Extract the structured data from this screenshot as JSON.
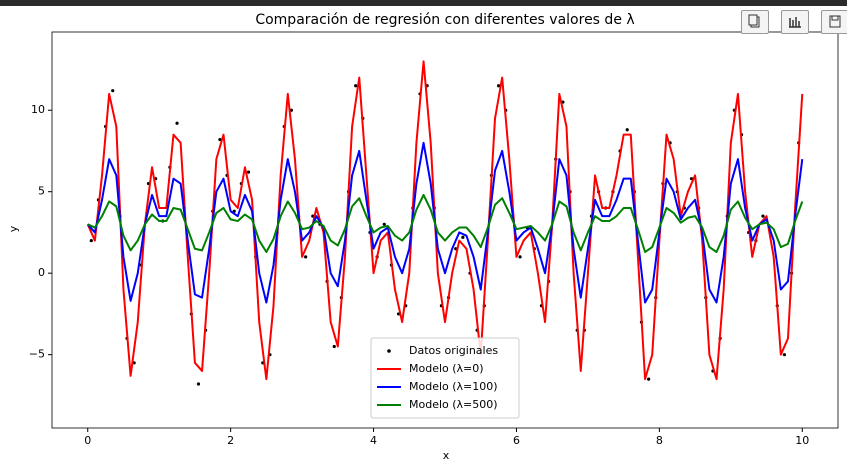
{
  "chart_data": {
    "type": "line",
    "title": "Comparación de regresión con diferentes valores de λ",
    "xlabel": "x",
    "ylabel": "y",
    "xlim": [
      -0.5,
      10.5
    ],
    "ylim": [
      -9.5,
      14.8
    ],
    "xticks": [
      0,
      2,
      4,
      6,
      8,
      10
    ],
    "yticks": [
      {
        "value": -5,
        "label": "−5"
      },
      0,
      5,
      10
    ],
    "grid": false,
    "legend": "lower center",
    "x": [
      0,
      0.1,
      0.2,
      0.3,
      0.4,
      0.5,
      0.6,
      0.7,
      0.8,
      0.9,
      1,
      1.1,
      1.2,
      1.3,
      1.4,
      1.5,
      1.6,
      1.7,
      1.8,
      1.9,
      2,
      2.1,
      2.2,
      2.3,
      2.4,
      2.5,
      2.6,
      2.7,
      2.8,
      2.9,
      3,
      3.1,
      3.2,
      3.3,
      3.4,
      3.5,
      3.6,
      3.7,
      3.8,
      3.9,
      4,
      4.1,
      4.2,
      4.3,
      4.4,
      4.5,
      4.6,
      4.7,
      4.8,
      4.9,
      5,
      5.1,
      5.2,
      5.3,
      5.4,
      5.5,
      5.6,
      5.7,
      5.8,
      5.9,
      6,
      6.1,
      6.2,
      6.3,
      6.4,
      6.5,
      6.6,
      6.7,
      6.8,
      6.9,
      7,
      7.1,
      7.2,
      7.3,
      7.4,
      7.5,
      7.6,
      7.7,
      7.8,
      7.9,
      8,
      8.1,
      8.2,
      8.3,
      8.4,
      8.5,
      8.6,
      8.7,
      8.8,
      8.9,
      9,
      9.1,
      9.2,
      9.3,
      9.4,
      9.5,
      9.6,
      9.7,
      9.8,
      9.9,
      10
    ],
    "series": [
      {
        "name": "Datos originales",
        "type": "scatter",
        "color": "#000000",
        "x": [
          0.05,
          0.15,
          0.25,
          0.35,
          0.45,
          0.55,
          0.65,
          0.75,
          0.85,
          0.95,
          1.05,
          1.15,
          1.25,
          1.35,
          1.45,
          1.55,
          1.65,
          1.75,
          1.85,
          1.95,
          2.05,
          2.15,
          2.25,
          2.35,
          2.45,
          2.55,
          2.65,
          2.75,
          2.85,
          2.95,
          3.05,
          3.15,
          3.25,
          3.35,
          3.45,
          3.55,
          3.65,
          3.75,
          3.85,
          3.95,
          4.05,
          4.15,
          4.25,
          4.35,
          4.45,
          4.55,
          4.65,
          4.75,
          4.85,
          4.95,
          5.05,
          5.15,
          5.25,
          5.35,
          5.45,
          5.55,
          5.65,
          5.75,
          5.85,
          5.95,
          6.05,
          6.15,
          6.25,
          6.35,
          6.45,
          6.55,
          6.65,
          6.75,
          6.85,
          6.95,
          7.05,
          7.15,
          7.25,
          7.35,
          7.45,
          7.55,
          7.65,
          7.75,
          7.85,
          7.95,
          8.05,
          8.15,
          8.25,
          8.35,
          8.45,
          8.55,
          8.65,
          8.75,
          8.85,
          8.95,
          9.05,
          9.15,
          9.25,
          9.35,
          9.45,
          9.55,
          9.65,
          9.75,
          9.85,
          9.95
        ],
        "values": [
          2.0,
          4.5,
          9.0,
          11.2,
          3.5,
          -4.0,
          -5.5,
          0.5,
          5.5,
          5.8,
          3.2,
          6.5,
          9.2,
          4.0,
          -2.5,
          -6.8,
          -3.5,
          3.8,
          8.2,
          6.0,
          3.8,
          5.5,
          6.2,
          1.0,
          -5.5,
          -5.0,
          2.5,
          9.0,
          10.0,
          3.5,
          1.0,
          3.5,
          3.0,
          -0.5,
          -4.5,
          -1.5,
          5.0,
          11.5,
          9.5,
          2.5,
          1.0,
          3.0,
          0.5,
          -2.5,
          -2.0,
          4.0,
          11.0,
          11.5,
          4.0,
          -2.0,
          -1.5,
          1.5,
          2.2,
          0.0,
          -3.5,
          -2.0,
          6.0,
          11.5,
          10.0,
          3.5,
          1.0,
          2.8,
          1.5,
          -2.0,
          -0.5,
          7.0,
          10.5,
          5.0,
          -3.5,
          -3.5,
          3.5,
          5.0,
          4.0,
          5.0,
          7.5,
          8.8,
          5.0,
          -3.0,
          -6.5,
          -1.5,
          5.5,
          8.0,
          5.0,
          4.0,
          5.8,
          4.0,
          -1.5,
          -6.0,
          -4.0,
          3.5,
          10.0,
          8.5,
          2.5,
          2.0,
          3.5,
          2.5,
          -2.0,
          -5.0,
          0.0,
          8.0
        ]
      },
      {
        "name": "Modelo (λ=0)",
        "type": "line",
        "color": "#ff0000",
        "values": [
          3,
          2,
          6,
          11,
          9,
          -1,
          -6.3,
          -3,
          3,
          6.5,
          4,
          4,
          8.5,
          8,
          1,
          -5.5,
          -6,
          0,
          7,
          8.5,
          4.5,
          4,
          6.5,
          4.5,
          -3,
          -6.5,
          -2,
          6,
          11,
          7,
          1,
          2,
          4,
          2.5,
          -3,
          -4.5,
          1,
          9,
          12,
          6,
          0,
          2,
          2.5,
          -1,
          -3,
          0,
          8,
          13,
          8,
          0,
          -3,
          0,
          2,
          1.5,
          -1,
          -5,
          2,
          9.5,
          12,
          7,
          1,
          2,
          2.5,
          0,
          -3,
          3,
          11,
          9,
          0,
          -6,
          0,
          6,
          4,
          4,
          6,
          8.5,
          8.5,
          1,
          -6.5,
          -5,
          2,
          8.5,
          7,
          3.5,
          5,
          6,
          2,
          -5,
          -6.5,
          -1,
          8,
          11,
          5,
          1,
          3,
          3.5,
          1,
          -5,
          -4,
          4,
          11
        ]
      },
      {
        "name": "Modelo (λ=100)",
        "type": "line",
        "color": "#0000ff",
        "values": [
          3,
          2.5,
          4.5,
          7,
          6,
          1,
          -1.7,
          0,
          3,
          4.8,
          3.5,
          3.5,
          5.8,
          5.5,
          2,
          -1.3,
          -1.5,
          1.5,
          5,
          5.8,
          3.8,
          3.5,
          4.8,
          3.8,
          0,
          -1.8,
          0.5,
          4.5,
          7,
          5,
          2,
          2.5,
          3.5,
          2.8,
          0,
          -0.8,
          2,
          6,
          7.5,
          4.5,
          1.5,
          2.5,
          2.8,
          1,
          0,
          1.5,
          5.5,
          8,
          5.5,
          1.5,
          0,
          1.5,
          2.5,
          2.3,
          1,
          -1,
          2.5,
          6.3,
          7.5,
          5,
          2,
          2.5,
          2.8,
          1.5,
          0,
          3,
          7,
          6,
          1.5,
          -1.5,
          1.5,
          4.5,
          3.5,
          3.5,
          4.5,
          5.8,
          5.8,
          2,
          -1.8,
          -1,
          2.5,
          5.8,
          5,
          3.3,
          4,
          4.5,
          2.5,
          -1,
          -1.8,
          1,
          5.5,
          7,
          4,
          2,
          3,
          3.3,
          2,
          -1,
          -0.5,
          3.5,
          7
        ]
      },
      {
        "name": "Modelo (λ=500)",
        "type": "line",
        "color": "#008000",
        "values": [
          3.0,
          2.8,
          3.5,
          4.4,
          4.1,
          2.3,
          1.4,
          2.0,
          3.0,
          3.6,
          3.2,
          3.2,
          4.0,
          3.9,
          2.7,
          1.5,
          1.4,
          2.5,
          3.7,
          4.0,
          3.3,
          3.2,
          3.6,
          3.3,
          2.0,
          1.3,
          2.1,
          3.5,
          4.4,
          3.7,
          2.7,
          2.8,
          3.2,
          2.9,
          2.0,
          1.7,
          2.7,
          4.1,
          4.6,
          3.5,
          2.5,
          2.8,
          2.9,
          2.3,
          2.0,
          2.5,
          3.9,
          4.8,
          3.9,
          2.5,
          2.0,
          2.5,
          2.8,
          2.8,
          2.3,
          1.6,
          2.8,
          4.2,
          4.6,
          3.7,
          2.7,
          2.8,
          2.9,
          2.5,
          2.0,
          3.0,
          4.4,
          4.1,
          2.5,
          1.4,
          2.5,
          3.5,
          3.2,
          3.2,
          3.5,
          4.0,
          4.0,
          2.7,
          1.3,
          1.6,
          2.8,
          4.0,
          3.7,
          3.1,
          3.4,
          3.5,
          2.8,
          1.6,
          1.3,
          2.3,
          3.9,
          4.4,
          3.4,
          2.7,
          3.0,
          3.1,
          2.7,
          1.6,
          1.8,
          3.2,
          4.4
        ]
      }
    ]
  }
}
